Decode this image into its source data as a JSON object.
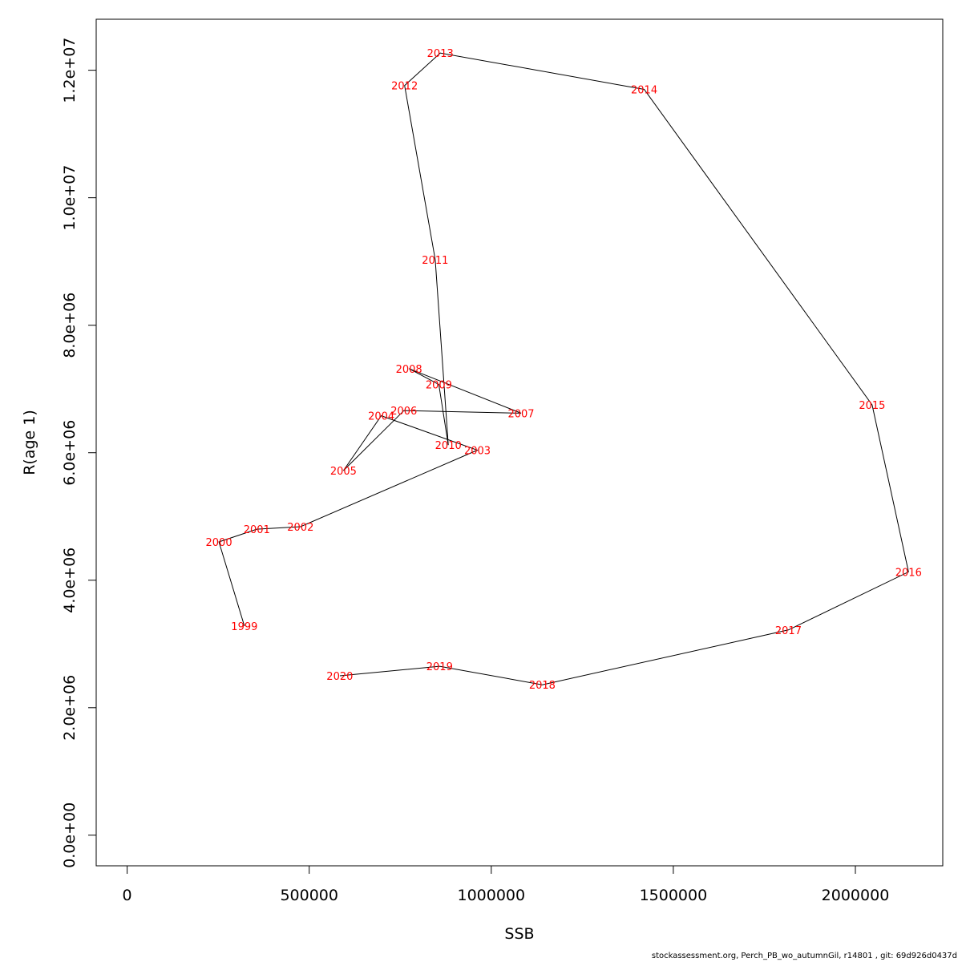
{
  "chart_data": {
    "type": "line",
    "title": "",
    "xlabel": "SSB",
    "ylabel": "R(age 1)",
    "xlim": [
      -85000,
      2240000
    ],
    "ylim": [
      -480000,
      12800000
    ],
    "x_ticks": [
      0,
      500000,
      1000000,
      1500000,
      2000000
    ],
    "x_tick_labels": [
      "0",
      "500000",
      "1000000",
      "1500000",
      "2000000"
    ],
    "y_ticks": [
      0,
      2000000,
      4000000,
      6000000,
      8000000,
      10000000,
      12000000
    ],
    "y_tick_labels": [
      "0.0e+00",
      "2.0e+06",
      "4.0e+06",
      "6.0e+06",
      "8.0e+06",
      "1.0e+07",
      "1.2e+07"
    ],
    "grid": false,
    "line_color": "#000000",
    "label_color": "#ff0000",
    "points": [
      {
        "year": "1999",
        "x": 322000,
        "y": 3280000
      },
      {
        "year": "2000",
        "x": 252000,
        "y": 4600000
      },
      {
        "year": "2001",
        "x": 356000,
        "y": 4800000
      },
      {
        "year": "2002",
        "x": 476000,
        "y": 4840000
      },
      {
        "year": "2003",
        "x": 962000,
        "y": 6040000
      },
      {
        "year": "2004",
        "x": 698000,
        "y": 6580000
      },
      {
        "year": "2005",
        "x": 594000,
        "y": 5720000
      },
      {
        "year": "2006",
        "x": 760000,
        "y": 6660000
      },
      {
        "year": "2007",
        "x": 1082000,
        "y": 6620000
      },
      {
        "year": "2008",
        "x": 774000,
        "y": 7320000
      },
      {
        "year": "2009",
        "x": 856000,
        "y": 7070000
      },
      {
        "year": "2010",
        "x": 882000,
        "y": 6120000
      },
      {
        "year": "2011",
        "x": 846000,
        "y": 9030000
      },
      {
        "year": "2012",
        "x": 762000,
        "y": 11760000
      },
      {
        "year": "2013",
        "x": 860000,
        "y": 12270000
      },
      {
        "year": "2014",
        "x": 1420000,
        "y": 11700000
      },
      {
        "year": "2015",
        "x": 2046000,
        "y": 6750000
      },
      {
        "year": "2016",
        "x": 2146000,
        "y": 4130000
      },
      {
        "year": "2017",
        "x": 1816000,
        "y": 3220000
      },
      {
        "year": "2018",
        "x": 1140000,
        "y": 2360000
      },
      {
        "year": "2019",
        "x": 858000,
        "y": 2650000
      },
      {
        "year": "2020",
        "x": 584000,
        "y": 2500000
      }
    ]
  },
  "footer": {
    "text": "stockassessment.org, Perch_PB_wo_autumnGil, r14801 , git: 69d926d0437d"
  }
}
